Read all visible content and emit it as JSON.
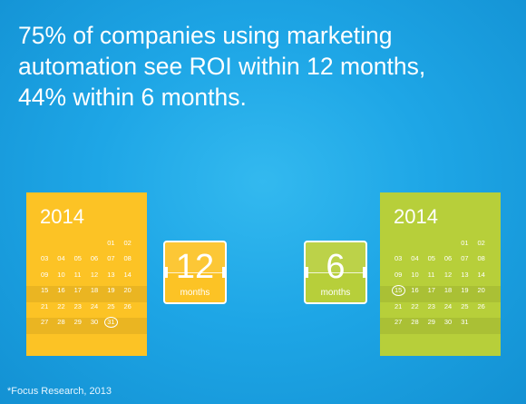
{
  "headline": {
    "line1": "75% of companies using marketing",
    "line2": "automation see ROI within 12 months,",
    "line3": "44% within 6 months."
  },
  "calendar_left": {
    "year": "2014",
    "days": [
      "",
      "",
      "",
      "",
      "01",
      "02",
      "03",
      "04",
      "05",
      "06",
      "07",
      "08",
      "09",
      "10",
      "11",
      "12",
      "13",
      "14",
      "15",
      "16",
      "17",
      "18",
      "19",
      "20",
      "21",
      "22",
      "23",
      "24",
      "25",
      "26",
      "27",
      "28",
      "29",
      "30",
      "31",
      ""
    ],
    "highlighted_day": "31",
    "color": "#fcc325"
  },
  "calendar_right": {
    "year": "2014",
    "days": [
      "",
      "",
      "",
      "",
      "01",
      "02",
      "03",
      "04",
      "05",
      "06",
      "07",
      "08",
      "09",
      "10",
      "11",
      "12",
      "13",
      "14",
      "15",
      "16",
      "17",
      "18",
      "19",
      "20",
      "21",
      "22",
      "23",
      "24",
      "25",
      "26",
      "27",
      "28",
      "29",
      "30",
      "31",
      ""
    ],
    "highlighted_day": "15",
    "color": "#b7cf3a"
  },
  "flip_left": {
    "number": "12",
    "unit": "months"
  },
  "flip_right": {
    "number": "6",
    "unit": "months"
  },
  "footnote": "*Focus Research, 2013"
}
